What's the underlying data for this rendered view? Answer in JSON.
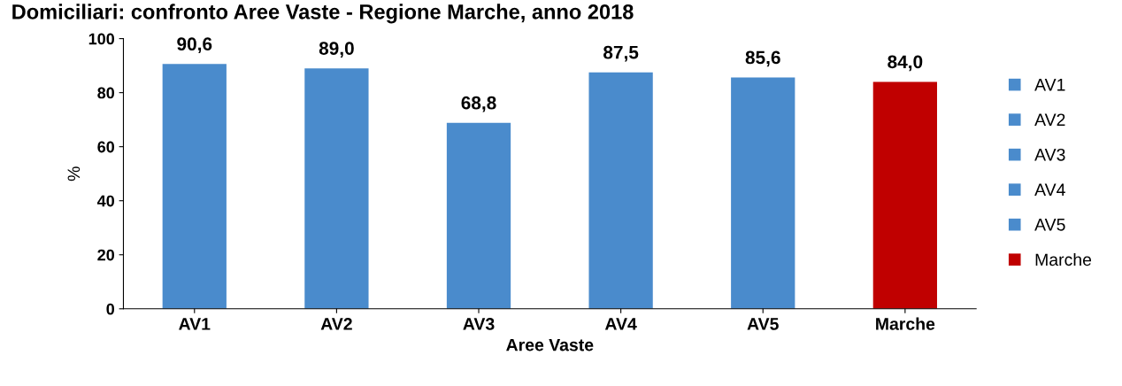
{
  "chart_data": {
    "type": "bar",
    "title": "Domiciliari: confronto Aree Vaste - Regione Marche, anno 2018",
    "categories": [
      "AV1",
      "AV2",
      "AV3",
      "AV4",
      "AV5",
      "Marche"
    ],
    "series": [
      {
        "name": "AV1",
        "color": "#4a8bcc",
        "values": [
          90.6,
          null,
          null,
          null,
          null,
          null
        ]
      },
      {
        "name": "AV2",
        "color": "#4a8bcc",
        "values": [
          null,
          89.0,
          null,
          null,
          null,
          null
        ]
      },
      {
        "name": "AV3",
        "color": "#4a8bcc",
        "values": [
          null,
          null,
          68.8,
          null,
          null,
          null
        ]
      },
      {
        "name": "AV4",
        "color": "#4a8bcc",
        "values": [
          null,
          null,
          null,
          87.5,
          null,
          null
        ]
      },
      {
        "name": "AV5",
        "color": "#4a8bcc",
        "values": [
          null,
          null,
          null,
          null,
          85.6,
          null
        ]
      },
      {
        "name": "Marche",
        "color": "#c00000",
        "values": [
          null,
          null,
          null,
          null,
          null,
          84.0
        ]
      }
    ],
    "value_labels": [
      "90,6",
      "89,0",
      "68,8",
      "87,5",
      "85,6",
      "84,0"
    ],
    "xlabel": "Aree Vaste",
    "ylabel": "%",
    "ylim": [
      0,
      100
    ],
    "yticks": [
      0,
      20,
      40,
      60,
      80,
      100
    ],
    "grid": false,
    "legend": "right"
  }
}
